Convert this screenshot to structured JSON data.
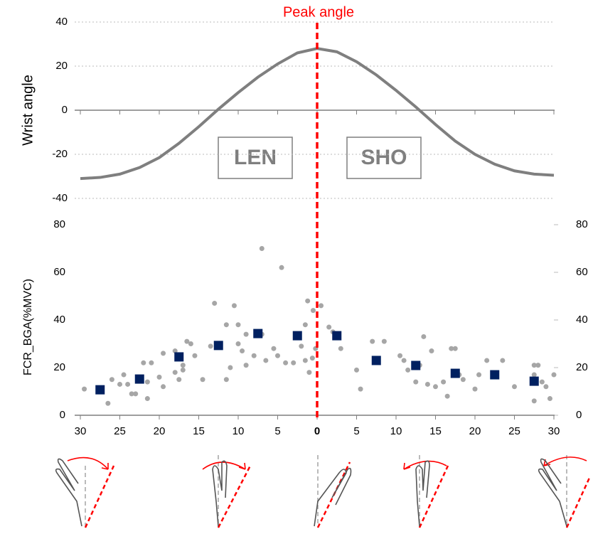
{
  "chart_data": [
    {
      "type": "line",
      "ylabel": "Wrist angle",
      "annotations": [
        "Peak angle",
        "LEN",
        "SHO"
      ],
      "xlim": [
        -30,
        30
      ],
      "ylim": [
        -40,
        40
      ],
      "yticks": [
        -40,
        -20,
        0,
        20,
        40
      ],
      "grid": true,
      "series": [
        {
          "color": "#7f7f7f",
          "x": [
            -30,
            -27.5,
            -25,
            -22.5,
            -20,
            -17.5,
            -15,
            -12.5,
            -10,
            -7.5,
            -5,
            -2.5,
            0,
            2.5,
            5,
            7.5,
            10,
            12.5,
            15,
            17.5,
            20,
            22.5,
            25,
            27.5,
            30
          ],
          "values": [
            -31,
            -30.5,
            -29,
            -26,
            -21.5,
            -15,
            -7.5,
            0.5,
            8,
            15,
            21,
            26,
            28,
            26.5,
            22,
            16,
            9,
            1.5,
            -6.5,
            -14,
            -20,
            -24.5,
            -27.5,
            -29,
            -29.5
          ]
        }
      ]
    },
    {
      "type": "scatter",
      "ylabel": "FCR_BGA(%MVC)",
      "xlim": [
        -30,
        30
      ],
      "ylim": [
        0,
        80
      ],
      "yticks": [
        0,
        20,
        40,
        60,
        80
      ],
      "y2lim": [
        0,
        80
      ],
      "y2ticks": [
        0,
        20,
        40,
        60,
        80
      ],
      "xticks": [
        {
          "value": -30,
          "label": "30"
        },
        {
          "value": -25,
          "label": "25"
        },
        {
          "value": -20,
          "label": "20"
        },
        {
          "value": -15,
          "label": "15"
        },
        {
          "value": -10,
          "label": "10"
        },
        {
          "value": -5,
          "label": "5"
        },
        0,
        5,
        10,
        15,
        20,
        25,
        30
      ],
      "series": [
        {
          "color": "#a6a6a6",
          "marker": "circle",
          "x": [
            -29.5,
            -26.5,
            -26,
            -25,
            -24.5,
            -24,
            -23.5,
            -23,
            -22.5,
            -22,
            -21.5,
            -21.5,
            -21,
            -20,
            -19.5,
            -19.5,
            -18,
            -18,
            -17.5,
            -17,
            -17,
            -16.5,
            -16,
            -15.5,
            -14.5,
            -13.5,
            -13,
            -11.5,
            -11.5,
            -11,
            -10.5,
            -10,
            -10,
            -9.5,
            -9,
            -9,
            -8,
            -7,
            -7,
            -6.5,
            -5.5,
            -5,
            -4.5,
            -4,
            -3,
            -2,
            -1.5,
            -1.5,
            -1,
            -0.5,
            -1.2,
            -0.6,
            -0.2,
            0.5,
            1.5,
            2,
            3,
            5,
            5.5,
            7,
            8.5,
            10.5,
            11,
            11.5,
            12.5,
            13,
            13.5,
            14,
            14.5,
            15,
            16,
            16.5,
            17,
            17.5,
            18,
            18.5,
            20,
            20.5,
            21.5,
            23.5,
            25,
            27.5,
            27.5,
            27.5,
            28,
            28.5,
            29,
            29.5,
            30
          ],
          "values": [
            11,
            5,
            15,
            13,
            17,
            13,
            9,
            9,
            16,
            22,
            14,
            7,
            22,
            16,
            12,
            26,
            27,
            18,
            15,
            21,
            19,
            31,
            30,
            25,
            15,
            29,
            47,
            38,
            15,
            20,
            46,
            38,
            30,
            27,
            34,
            21,
            25,
            70,
            34,
            23,
            28,
            25,
            62,
            22,
            22,
            29,
            38,
            23,
            18,
            44,
            48,
            24,
            28,
            46,
            37,
            35,
            28,
            19,
            11,
            31,
            31,
            25,
            23,
            19,
            14,
            21,
            33,
            13,
            27,
            12,
            14,
            8,
            28,
            28,
            17,
            15,
            11,
            17,
            23,
            23,
            12,
            21,
            17,
            6,
            21,
            14,
            12,
            7,
            17
          ]
        },
        {
          "color": "#002060",
          "marker": "square",
          "x": [
            -27.5,
            -22.5,
            -17.5,
            -12.5,
            -7.5,
            -2.5,
            2.5,
            7.5,
            12.5,
            17.5,
            22.5,
            27.5
          ],
          "values": [
            10.7,
            15.2,
            24.5,
            29.3,
            34.3,
            33.4,
            33.4,
            23,
            20.9,
            17.6,
            17,
            14.3
          ]
        }
      ]
    }
  ]
}
